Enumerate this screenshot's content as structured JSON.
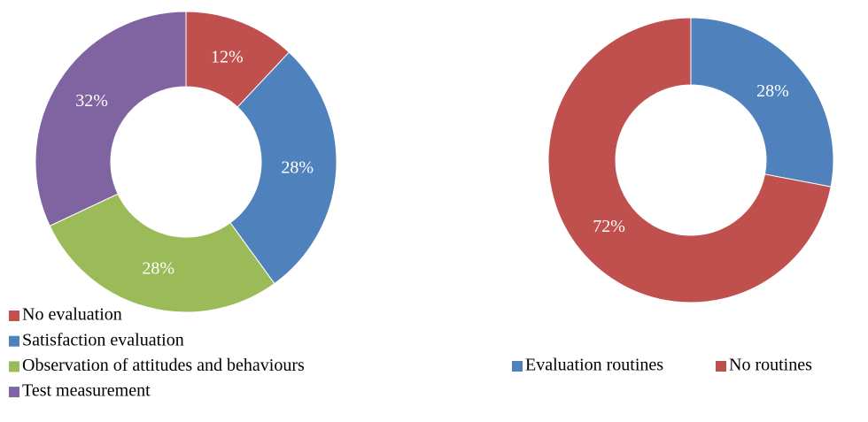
{
  "chart_data": [
    {
      "type": "donut",
      "categories": [
        "No evaluation",
        "Satisfaction evaluation",
        "Observation of attitudes and behaviours",
        "Test measurement"
      ],
      "values": [
        12,
        28,
        28,
        32
      ],
      "value_labels": [
        "12%",
        "28%",
        "28%",
        "32%"
      ],
      "colors": [
        "#c0504d",
        "#4f81bd",
        "#9bbb59",
        "#8064a2"
      ],
      "legend": "bottom-left"
    },
    {
      "type": "donut",
      "categories": [
        "Evaluation routines",
        "No routines"
      ],
      "values": [
        28,
        72
      ],
      "value_labels": [
        "28%",
        "72%"
      ],
      "colors": [
        "#4f81bd",
        "#c0504d"
      ],
      "legend": "bottom"
    }
  ]
}
